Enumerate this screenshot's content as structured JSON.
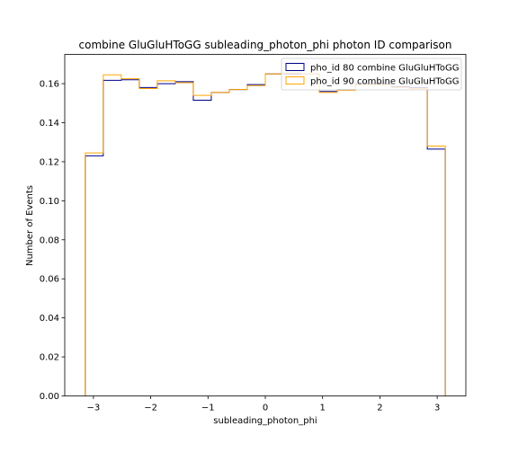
{
  "chart_data": {
    "type": "step",
    "title": "combine GluGluHToGG subleading_photon_phi photon ID comparison",
    "xlabel": "subleading_photon_phi",
    "ylabel": "Number of Events",
    "xlim": [
      -3.5,
      3.5
    ],
    "ylim": [
      0,
      0.175
    ],
    "xticks": [
      -3,
      -2,
      -1,
      0,
      1,
      2,
      3
    ],
    "yticks": [
      0.0,
      0.02,
      0.04,
      0.06,
      0.08,
      0.1,
      0.12,
      0.14,
      0.16
    ],
    "ytick_labels": [
      "0.00",
      "0.02",
      "0.04",
      "0.06",
      "0.08",
      "0.10",
      "0.12",
      "0.14",
      "0.16"
    ],
    "grid": false,
    "legend_position": "top-right",
    "bin_edges": [
      -3.1416,
      -2.8274,
      -2.5133,
      -2.1991,
      -1.885,
      -1.5708,
      -1.2566,
      -0.9425,
      -0.6283,
      -0.3142,
      0.0,
      0.3142,
      0.6283,
      0.9425,
      1.2566,
      1.5708,
      1.885,
      2.1991,
      2.5133,
      2.8274,
      3.1416
    ],
    "series": [
      {
        "name": "pho_id 80 combine GluGluHToGG",
        "color": "#00008b",
        "values": [
          0.123,
          0.1617,
          0.162,
          0.158,
          0.16,
          0.161,
          0.1515,
          0.1555,
          0.157,
          0.1595,
          0.165,
          0.165,
          0.165,
          0.156,
          0.157,
          0.16,
          0.16,
          0.1585,
          0.158,
          0.1265
        ]
      },
      {
        "name": "pho_id 90 combine GluGluHToGG",
        "color": "#ffa500",
        "values": [
          0.1245,
          0.1645,
          0.1625,
          0.1575,
          0.1615,
          0.1605,
          0.154,
          0.1555,
          0.157,
          0.159,
          0.165,
          0.1655,
          0.165,
          0.1555,
          0.1565,
          0.1595,
          0.1595,
          0.158,
          0.1575,
          0.128
        ]
      }
    ]
  }
}
